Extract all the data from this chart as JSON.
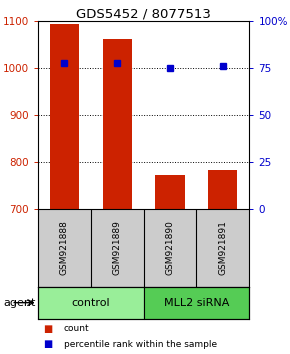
{
  "title": "GDS5452 / 8077513",
  "samples": [
    "GSM921888",
    "GSM921889",
    "GSM921890",
    "GSM921891"
  ],
  "counts": [
    1095,
    1063,
    773,
    783
  ],
  "percentile_ranks": [
    78,
    78,
    75,
    76
  ],
  "ylim_left": [
    700,
    1100
  ],
  "ylim_right": [
    0,
    100
  ],
  "yticks_left": [
    700,
    800,
    900,
    1000,
    1100
  ],
  "yticks_right": [
    0,
    25,
    50,
    75,
    100
  ],
  "yticklabels_right": [
    "0",
    "25",
    "50",
    "75",
    "100%"
  ],
  "bar_color": "#cc2200",
  "dot_color": "#0000cc",
  "bar_width": 0.55,
  "groups": [
    {
      "label": "control",
      "samples": [
        0,
        1
      ],
      "color": "#99ee99"
    },
    {
      "label": "MLL2 siRNA",
      "samples": [
        2,
        3
      ],
      "color": "#55cc55"
    }
  ],
  "left_tick_color": "#cc2200",
  "right_tick_color": "#0000cc",
  "sample_box_color": "#cccccc",
  "legend_items": [
    {
      "label": "count",
      "color": "#cc2200"
    },
    {
      "label": "percentile rank within the sample",
      "color": "#0000cc"
    }
  ],
  "figsize": [
    2.9,
    3.54
  ],
  "dpi": 100
}
